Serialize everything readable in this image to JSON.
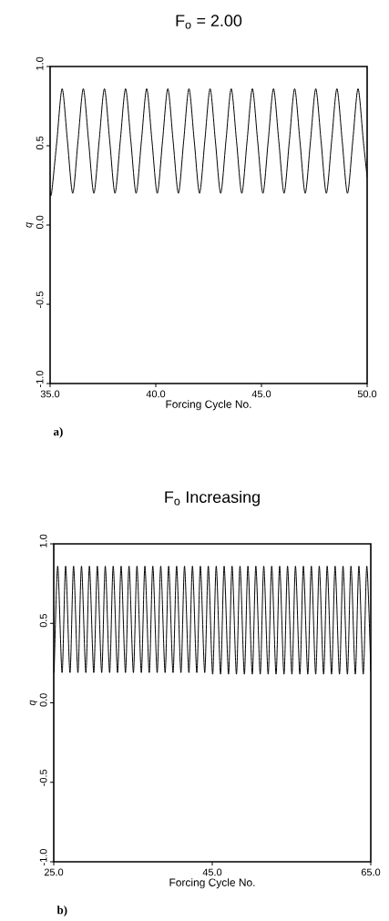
{
  "chart_data": [
    {
      "type": "line",
      "title": "F$_{o}$ = 2.00",
      "xlabel": "Forcing Cycle No.",
      "ylabel": "q",
      "annotations": [
        "a)"
      ],
      "x": [
        35,
        35.07,
        35.32,
        35.57,
        35.82,
        36.07,
        36.32,
        36.57,
        36.82,
        37.07,
        37.32,
        37.57,
        37.82,
        38.07,
        38.32,
        38.57,
        38.82,
        39.07,
        39.32,
        39.57,
        39.82,
        40.07,
        40.32,
        40.57,
        40.82,
        41.07,
        41.32,
        41.57,
        41.82,
        42.07,
        42.32,
        42.57,
        42.82,
        43.07,
        43.32,
        43.57,
        43.82,
        44.07,
        44.32,
        44.57,
        44.82,
        45.07,
        45.32,
        45.57,
        45.82,
        46.07,
        46.32,
        46.57,
        46.82,
        47.07,
        47.32,
        47.57,
        47.82,
        48.07,
        48.32,
        48.57,
        48.82,
        49.07,
        49.32,
        49.57,
        49.82,
        50
      ],
      "series": [
        {
          "color": "#000000",
          "values": [
            0.22,
            0.2,
            0.53,
            0.86,
            0.53,
            0.2,
            0.53,
            0.86,
            0.53,
            0.2,
            0.53,
            0.86,
            0.53,
            0.2,
            0.53,
            0.86,
            0.53,
            0.2,
            0.53,
            0.86,
            0.53,
            0.2,
            0.53,
            0.86,
            0.53,
            0.2,
            0.53,
            0.86,
            0.53,
            0.2,
            0.53,
            0.86,
            0.53,
            0.2,
            0.53,
            0.86,
            0.53,
            0.2,
            0.53,
            0.86,
            0.53,
            0.2,
            0.53,
            0.86,
            0.53,
            0.2,
            0.53,
            0.86,
            0.53,
            0.2,
            0.53,
            0.86,
            0.53,
            0.2,
            0.53,
            0.86,
            0.53,
            0.2,
            0.53,
            0.86,
            0.53,
            0.3
          ]
        }
      ],
      "xlim": [
        35,
        50
      ],
      "ylim": [
        -1,
        1
      ],
      "xticks": [
        {
          "value": 35,
          "label": "35.0"
        },
        {
          "value": 40,
          "label": "40.0"
        },
        {
          "value": 45,
          "label": "45.0"
        },
        {
          "value": 50,
          "label": "50.0"
        }
      ],
      "yticks": [
        {
          "value": -1,
          "label": "-1.0"
        },
        {
          "value": -0.5,
          "label": "-0.5"
        },
        {
          "value": 0,
          "label": "0.0"
        },
        {
          "value": 0.5,
          "label": "0.5"
        },
        {
          "value": 1,
          "label": "1.0"
        }
      ]
    },
    {
      "type": "line",
      "title": "F$_{o}$ Increasing",
      "xlabel": "Forcing Cycle No.",
      "ylabel": "q",
      "annotations": [
        "b)"
      ],
      "x": [
        25.05,
        25.5,
        26.05,
        26.5,
        27.05,
        27.5,
        28.05,
        28.5,
        29.05,
        29.5,
        30.05,
        30.5,
        31.05,
        31.5,
        32.05,
        32.5,
        33.05,
        33.5,
        34.05,
        34.5,
        35.05,
        35.5,
        36.05,
        36.5,
        37.05,
        37.5,
        38.05,
        38.5,
        39.05,
        39.5,
        40.05,
        40.5,
        41.05,
        41.5,
        42.05,
        42.5,
        43.05,
        43.5,
        44.05,
        44.5,
        45.05,
        45.5,
        46.05,
        46.5,
        47.05,
        47.5,
        48.05,
        48.5,
        49.05,
        49.5,
        50.05,
        50.5,
        51.05,
        51.5,
        52.05,
        52.5,
        53.05,
        53.5,
        54.05,
        54.5,
        55.05,
        55.5,
        56.05,
        56.5,
        57.05,
        57.5,
        58.05,
        58.5,
        59.05,
        59.5,
        60.05,
        60.5,
        61.05,
        61.5,
        62.05,
        62.5,
        63.05,
        63.5,
        64.05,
        64.5,
        65
      ],
      "series": [
        {
          "color": "#000000",
          "values": [
            0.19,
            0.86,
            0.19,
            0.86,
            0.19,
            0.86,
            0.19,
            0.86,
            0.19,
            0.86,
            0.19,
            0.86,
            0.19,
            0.86,
            0.19,
            0.86,
            0.19,
            0.86,
            0.19,
            0.86,
            0.19,
            0.86,
            0.19,
            0.86,
            0.19,
            0.86,
            0.19,
            0.86,
            0.19,
            0.86,
            0.19,
            0.86,
            0.19,
            0.86,
            0.19,
            0.86,
            0.19,
            0.86,
            0.19,
            0.86,
            0.18,
            0.86,
            0.18,
            0.86,
            0.18,
            0.86,
            0.18,
            0.86,
            0.18,
            0.86,
            0.18,
            0.86,
            0.18,
            0.86,
            0.18,
            0.86,
            0.18,
            0.86,
            0.18,
            0.86,
            0.18,
            0.86,
            0.18,
            0.86,
            0.18,
            0.86,
            0.18,
            0.86,
            0.18,
            0.86,
            0.18,
            0.86,
            0.18,
            0.86,
            0.18,
            0.86,
            0.18,
            0.86,
            0.18,
            0.86,
            0.2
          ]
        }
      ],
      "xlim": [
        25,
        65
      ],
      "ylim": [
        -1,
        1
      ],
      "xticks": [
        {
          "value": 25,
          "label": "25.0"
        },
        {
          "value": 45,
          "label": "45.0"
        },
        {
          "value": 65,
          "label": "65.0"
        }
      ],
      "yticks": [
        {
          "value": -1,
          "label": "-1.0"
        },
        {
          "value": -0.5,
          "label": "-0.5"
        },
        {
          "value": 0,
          "label": "0.0"
        },
        {
          "value": 0.5,
          "label": "0.5"
        },
        {
          "value": 1,
          "label": "1.0"
        }
      ]
    }
  ]
}
